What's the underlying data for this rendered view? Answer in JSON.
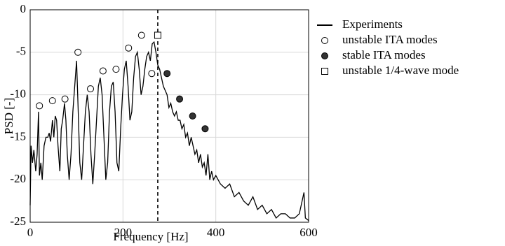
{
  "chart_data": {
    "type": "line",
    "xlabel": "Frequency [Hz]",
    "ylabel": "PSD [-]",
    "xlim": [
      0,
      600
    ],
    "xticks": [
      0,
      200,
      400,
      600
    ],
    "ylim": [
      -25,
      0
    ],
    "yticks": [
      0,
      -5,
      -10,
      -15,
      -20,
      -25
    ],
    "grid": true,
    "legend": "right",
    "vline": {
      "x": 275,
      "style": "dashed",
      "color": "#000000"
    },
    "series": [
      {
        "name": "Experiments",
        "color": "#000000",
        "marker": "line",
        "x": [
          0,
          2,
          5,
          8,
          12,
          15,
          18,
          20,
          23,
          26,
          30,
          34,
          38,
          41,
          44,
          48,
          51,
          54,
          57,
          60,
          64,
          67,
          70,
          74,
          77,
          80,
          84,
          88,
          92,
          96,
          100,
          103,
          107,
          111,
          115,
          119,
          123,
          127,
          131,
          135,
          139,
          143,
          147,
          151,
          155,
          159,
          163,
          167,
          171,
          175,
          179,
          183,
          187,
          191,
          195,
          199,
          203,
          207,
          211,
          215,
          219,
          223,
          227,
          231,
          235,
          239,
          243,
          247,
          251,
          255,
          259,
          263,
          267,
          271,
          275,
          279,
          283,
          287,
          291,
          295,
          299,
          303,
          307,
          311,
          315,
          319,
          323,
          327,
          331,
          335,
          339,
          343,
          347,
          351,
          355,
          359,
          363,
          367,
          371,
          375,
          379,
          383,
          387,
          391,
          395,
          400,
          410,
          420,
          430,
          440,
          450,
          460,
          470,
          480,
          490,
          500,
          510,
          520,
          530,
          540,
          550,
          560,
          570,
          580,
          590,
          593,
          600
        ],
        "values": [
          -23,
          -16,
          -18,
          -16.5,
          -19,
          -17,
          -12,
          -19.5,
          -18,
          -20,
          -16,
          -15,
          -15,
          -14.5,
          -15.5,
          -13,
          -15,
          -12.5,
          -13,
          -16,
          -19,
          -14,
          -13,
          -11,
          -13,
          -17,
          -20,
          -17,
          -12,
          -9,
          -6,
          -11,
          -18,
          -20,
          -16,
          -12,
          -10,
          -12,
          -17,
          -20.5,
          -17,
          -13,
          -9,
          -8,
          -10,
          -15,
          -20,
          -18,
          -12,
          -9,
          -8.5,
          -12,
          -18,
          -19,
          -14,
          -10,
          -7,
          -6,
          -9,
          -13,
          -12,
          -8,
          -5.5,
          -5,
          -7,
          -10,
          -9,
          -7,
          -5.5,
          -5,
          -6,
          -4,
          -3.8,
          -5,
          -6.5,
          -7,
          -8,
          -9,
          -9.5,
          -10,
          -11.5,
          -11,
          -12,
          -12.5,
          -12,
          -13,
          -13,
          -14,
          -13.5,
          -15,
          -14.5,
          -16,
          -15,
          -16,
          -17,
          -16.5,
          -18,
          -17,
          -18.5,
          -18,
          -19.5,
          -17,
          -20,
          -19,
          -20,
          -19.5,
          -20.5,
          -21,
          -20.5,
          -22,
          -21.5,
          -22.5,
          -23,
          -22,
          -23.5,
          -23,
          -24,
          -23.5,
          -24.5,
          -24,
          -24,
          -24.5,
          -24.5,
          -24,
          -21.5,
          -24.5,
          -24.8
        ]
      },
      {
        "name": "unstable ITA modes",
        "color": "#000000",
        "marker": "open-circle",
        "x": [
          20,
          48,
          75,
          103,
          130,
          157,
          185,
          212,
          240,
          262
        ],
        "values": [
          -11.3,
          -10.7,
          -10.5,
          -5,
          -9.3,
          -7.2,
          -7,
          -4.5,
          -3,
          -7.5
        ]
      },
      {
        "name": "stable ITA modes",
        "color": "#000000",
        "marker": "filled-circle",
        "x": [
          295,
          322,
          350,
          377
        ],
        "values": [
          -7.5,
          -10.5,
          -12.5,
          -14
        ]
      },
      {
        "name": "unstable 1/4-wave mode",
        "color": "#000000",
        "marker": "open-square",
        "x": [
          275
        ],
        "values": [
          -3
        ]
      }
    ]
  }
}
